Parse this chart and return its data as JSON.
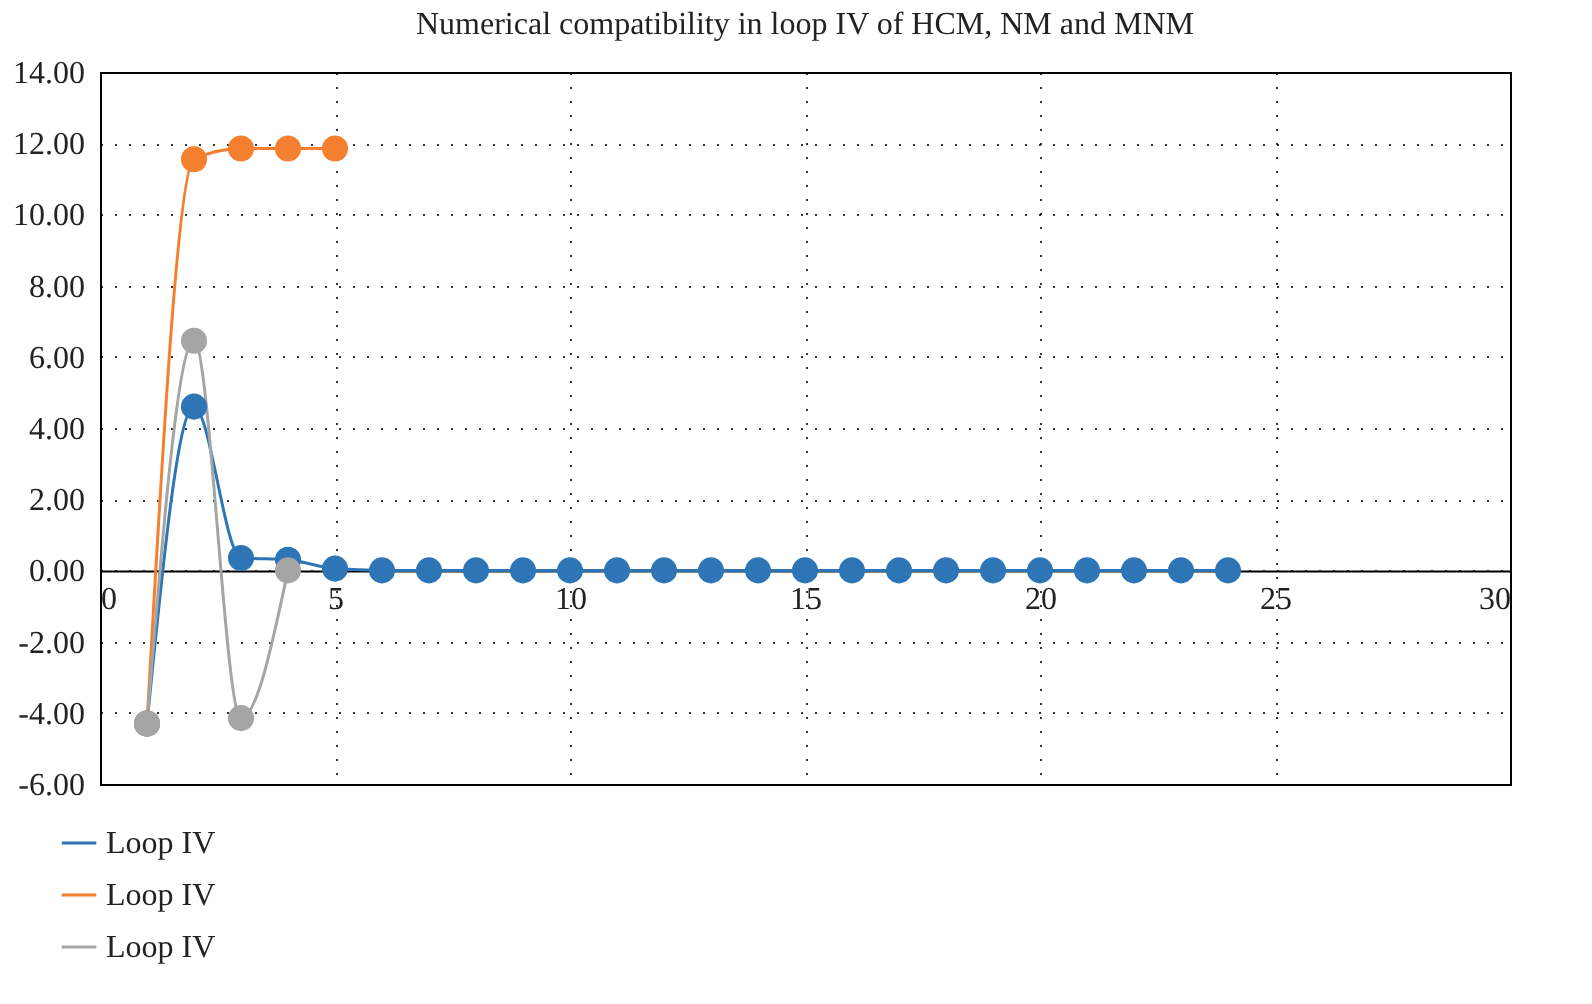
{
  "chart_data": {
    "type": "line",
    "title": "Numerical compatibility in loop IV of HCM, NM and MNM",
    "x": [
      1,
      2,
      3,
      4,
      5,
      6,
      7,
      8,
      9,
      10,
      11,
      12,
      13,
      14,
      15,
      16,
      17,
      18,
      19,
      20,
      21,
      22,
      23,
      24
    ],
    "series": [
      {
        "name": "Loop IV",
        "color": "#2e75b6",
        "values": [
          -4.3,
          4.6,
          0.35,
          0.3,
          0.05,
          0,
          0,
          0,
          0,
          0,
          0,
          0,
          0,
          0,
          0,
          0,
          0,
          0,
          0,
          0,
          0,
          0,
          0,
          0
        ]
      },
      {
        "name": "Loop IV",
        "color": "#f47f2e",
        "x": [
          1,
          2,
          3,
          4,
          5
        ],
        "values": [
          -4.3,
          11.55,
          11.85,
          11.85,
          11.85
        ]
      },
      {
        "name": "Loop IV",
        "color": "#a5a5a5",
        "x": [
          1,
          2,
          3,
          4
        ],
        "values": [
          -4.3,
          6.45,
          -4.15,
          0
        ]
      }
    ],
    "xlim": [
      0,
      30
    ],
    "xticks": [
      0,
      5,
      10,
      15,
      20,
      25,
      30
    ],
    "ylim": [
      -6,
      14
    ],
    "yticks": [
      {
        "value": -6,
        "label": "-6.00"
      },
      {
        "value": -4,
        "label": "-4.00"
      },
      {
        "value": -2,
        "label": "-2.00"
      },
      {
        "value": 0,
        "label": "0.00"
      },
      {
        "value": 2,
        "label": "2.00"
      },
      {
        "value": 4,
        "label": "4.00"
      },
      {
        "value": 6,
        "label": "6.00"
      },
      {
        "value": 8,
        "label": "8.00"
      },
      {
        "value": 10,
        "label": "10.00"
      },
      {
        "value": 12,
        "label": "12.00"
      },
      {
        "value": 14,
        "label": "14.00"
      }
    ],
    "grid": true,
    "legend": "bottom left",
    "marker": "circle",
    "line_style": "solid"
  }
}
